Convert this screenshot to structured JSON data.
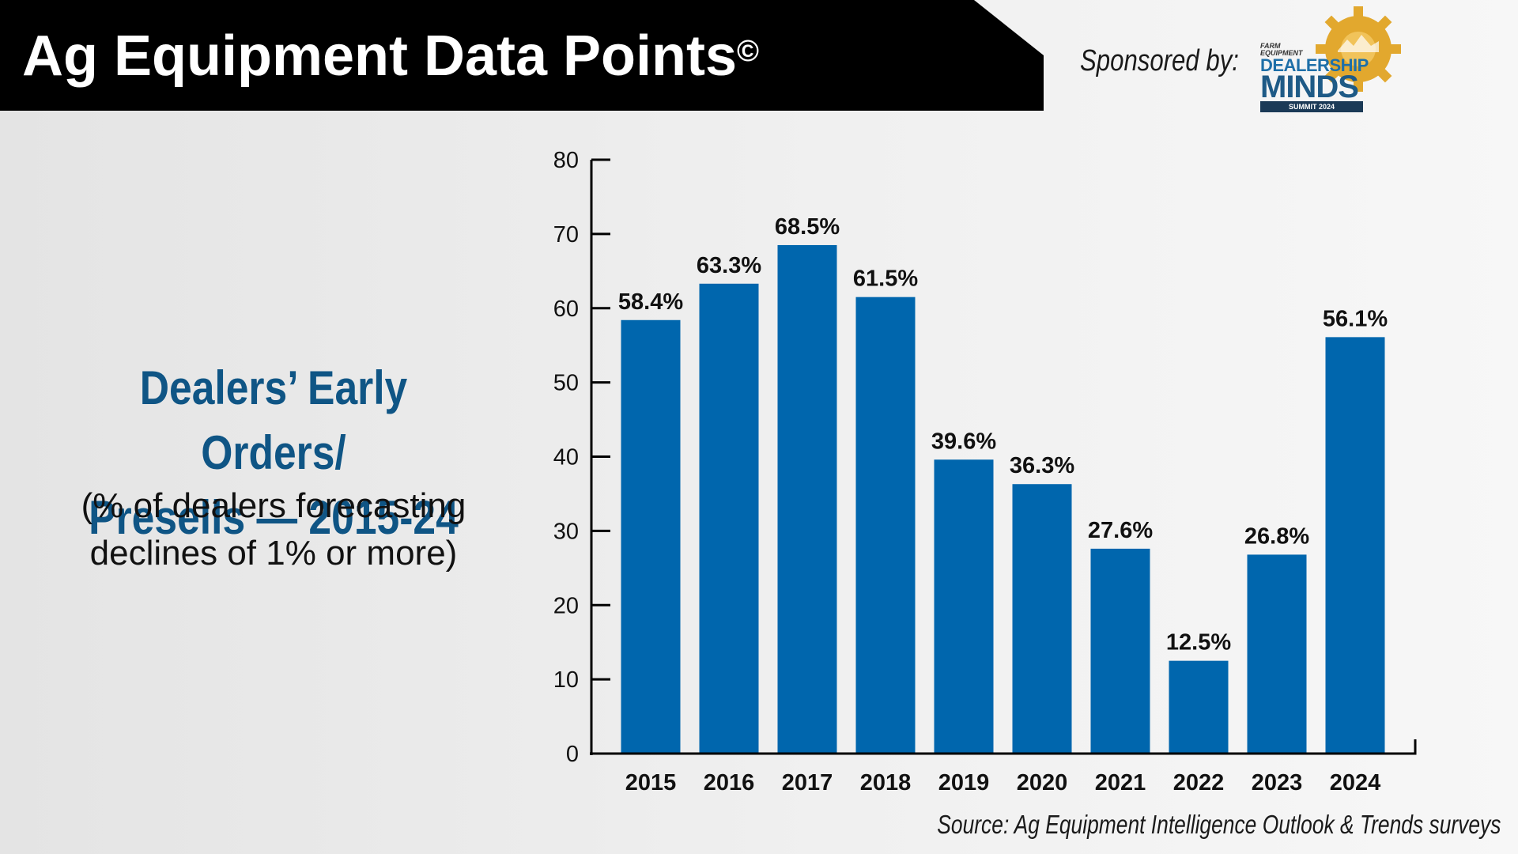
{
  "header": {
    "title": "Ag Equipment Data Points",
    "copyright_mark": "©",
    "sponsor_label": "Sponsored by:"
  },
  "logo": {
    "brand_small_1": "FARM",
    "brand_small_2": "EQUIPMENT",
    "word_1": "DEALERSHIP",
    "word_2": "MINDS",
    "tagline": "SUMMIT 2024"
  },
  "subtitle": {
    "line1": "Dealers’ Early Orders/",
    "line2": "Presells — 2015-24",
    "line3": "(% of dealers forecasting",
    "line4": "declines of 1% or more)"
  },
  "chart_data": {
    "type": "bar",
    "categories": [
      "2015",
      "2016",
      "2017",
      "2018",
      "2019",
      "2020",
      "2021",
      "2022",
      "2023",
      "2024"
    ],
    "values": [
      58.4,
      63.3,
      68.5,
      61.5,
      39.6,
      36.3,
      27.6,
      12.5,
      26.8,
      56.1
    ],
    "data_labels": [
      "58.4%",
      "63.3%",
      "68.5%",
      "61.5%",
      "39.6%",
      "36.3%",
      "27.6%",
      "12.5%",
      "26.8%",
      "56.1%"
    ],
    "ylim": [
      0,
      80
    ],
    "yticks": [
      0,
      10,
      20,
      30,
      40,
      50,
      60,
      70,
      80
    ],
    "bar_color": "#0066ad",
    "grid": false,
    "legend": "none"
  },
  "source": "Source: Ag Equipment Intelligence Outlook & Trends surveys"
}
